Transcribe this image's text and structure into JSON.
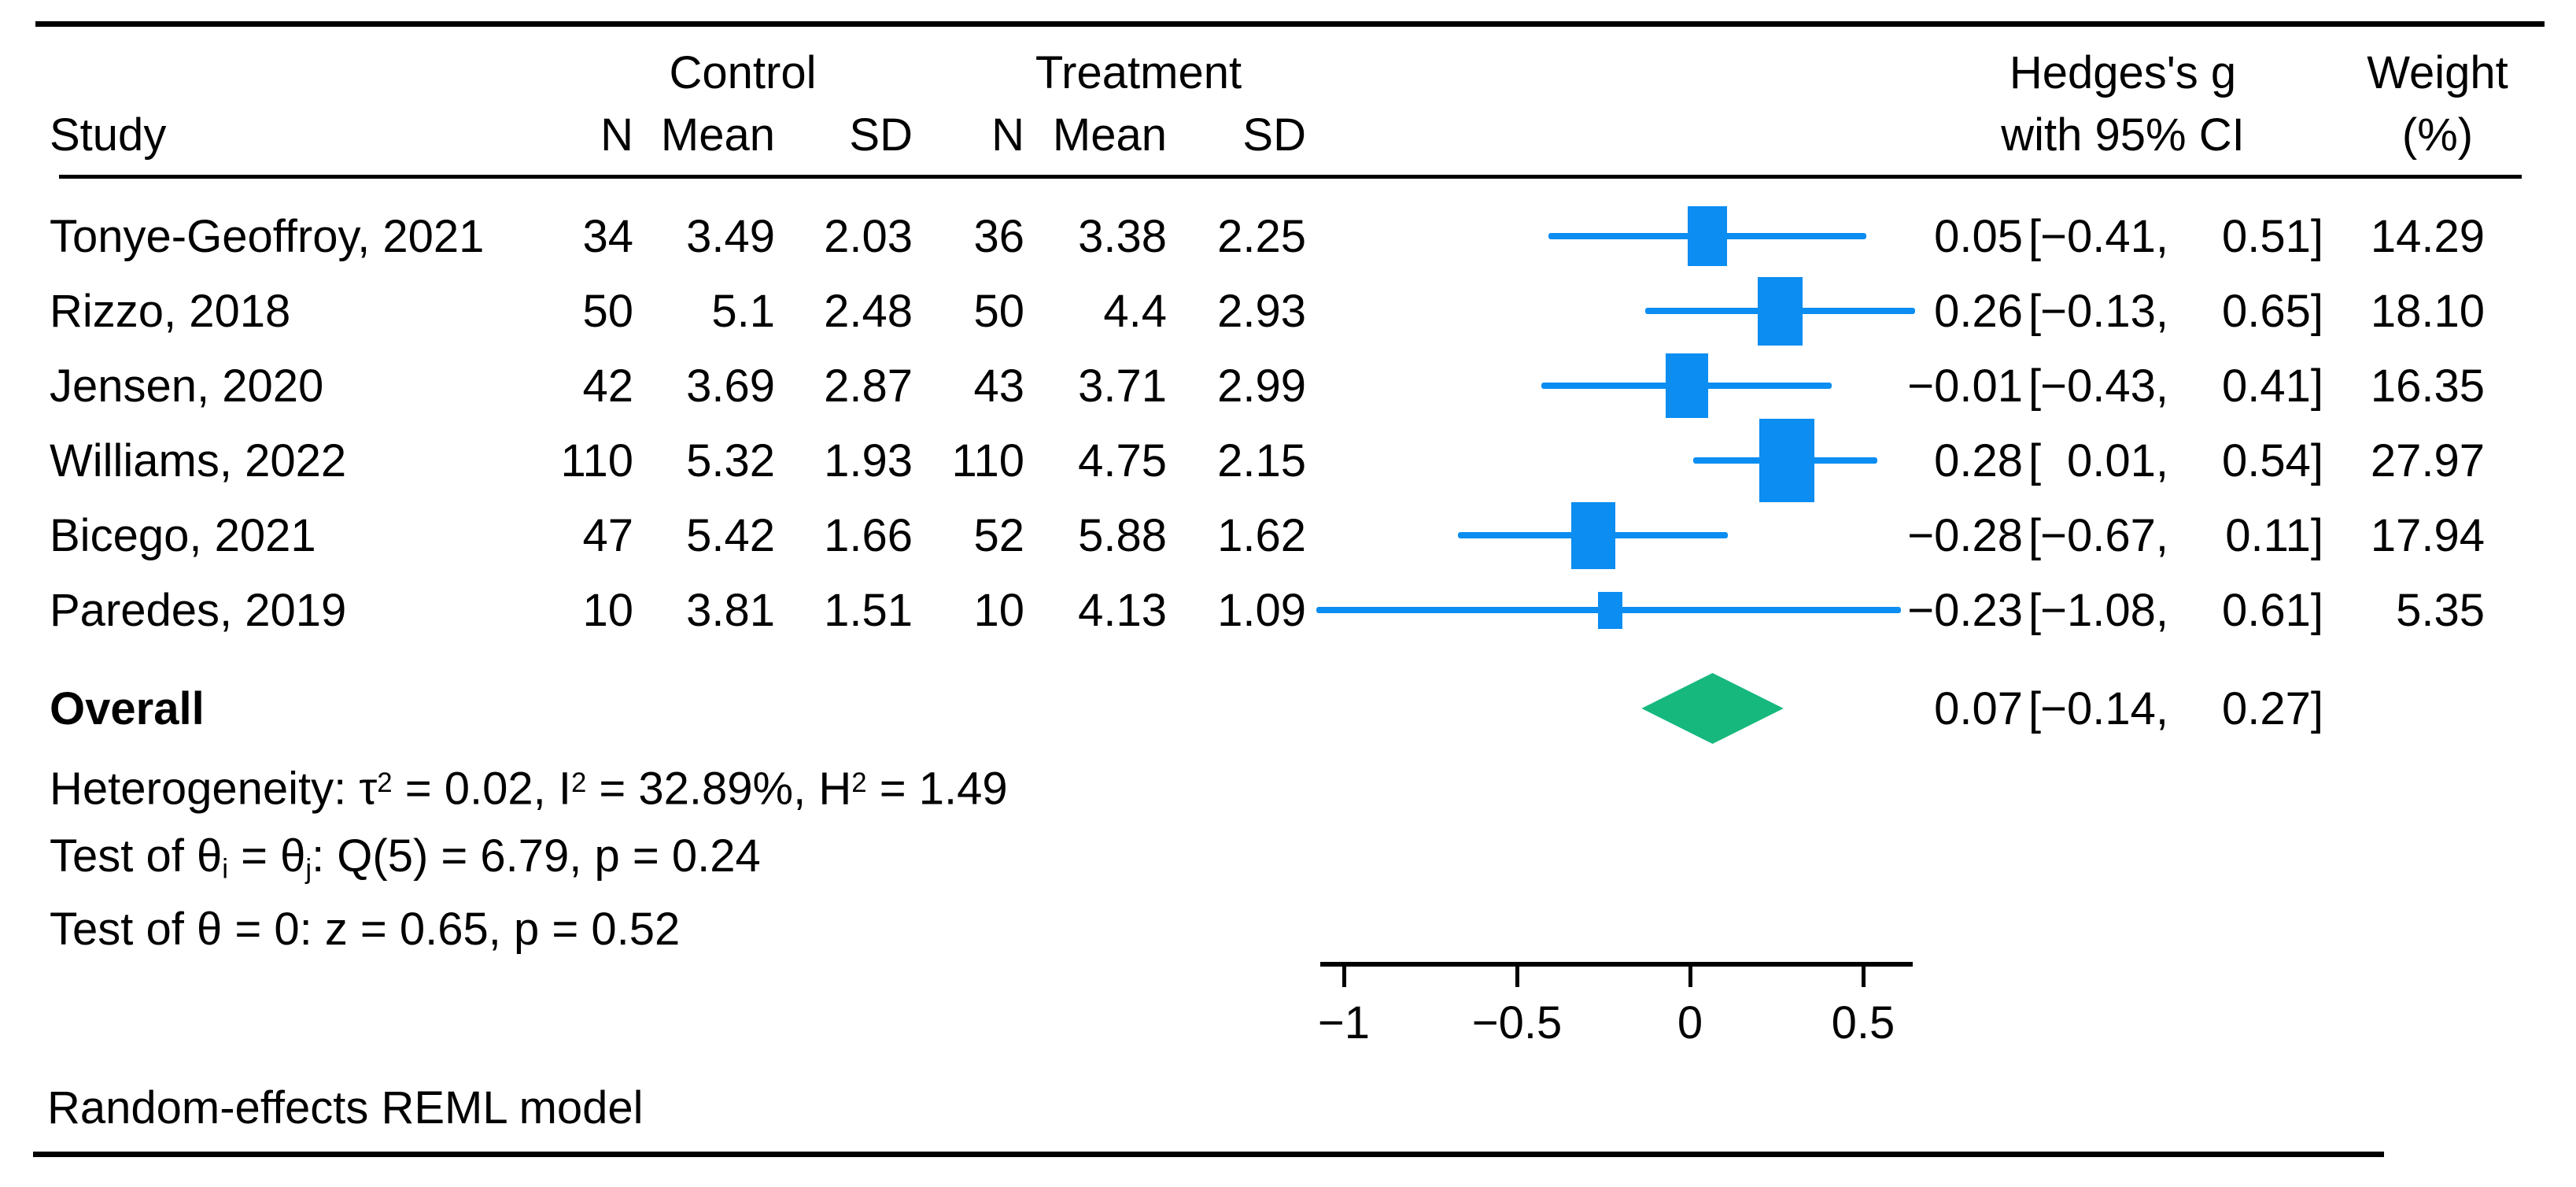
{
  "header": {
    "study": "Study",
    "group_control": "Control",
    "group_treatment": "Treatment",
    "col_n": "N",
    "col_mean": "Mean",
    "col_sd": "SD",
    "effect_title_line1": "Hedges's g",
    "effect_title_line2": "with 95% CI",
    "weight_title_line1": "Weight",
    "weight_title_line2": "(%)"
  },
  "chart_data": {
    "type": "scatter",
    "subtype": "forest-plot",
    "effect_measure": "Hedges's g",
    "legend_position": "none",
    "grid": false,
    "studies": [
      {
        "study": "Tonye-Geoffroy, 2021",
        "control": {
          "n": "34",
          "mean": "3.49",
          "sd": "2.03"
        },
        "treatment": {
          "n": "36",
          "mean": "3.38",
          "sd": "2.25"
        },
        "est": "0.05",
        "ci_low": "−0.41",
        "ci_high": "0.51",
        "weight": "14.29"
      },
      {
        "study": "Rizzo, 2018",
        "control": {
          "n": "50",
          "mean": "5.1",
          "sd": "2.48"
        },
        "treatment": {
          "n": "50",
          "mean": "4.4",
          "sd": "2.93"
        },
        "est": "0.26",
        "ci_low": "−0.13",
        "ci_high": "0.65",
        "weight": "18.10"
      },
      {
        "study": "Jensen, 2020",
        "control": {
          "n": "42",
          "mean": "3.69",
          "sd": "2.87"
        },
        "treatment": {
          "n": "43",
          "mean": "3.71",
          "sd": "2.99"
        },
        "est": "−0.01",
        "ci_low": "−0.43",
        "ci_high": "0.41",
        "weight": "16.35"
      },
      {
        "study": "Williams, 2022",
        "control": {
          "n": "110",
          "mean": "5.32",
          "sd": "1.93"
        },
        "treatment": {
          "n": "110",
          "mean": "4.75",
          "sd": "2.15"
        },
        "est": "0.28",
        "ci_low": "0.01",
        "ci_high": "0.54",
        "weight": "27.97"
      },
      {
        "study": "Bicego, 2021",
        "control": {
          "n": "47",
          "mean": "5.42",
          "sd": "1.66"
        },
        "treatment": {
          "n": "52",
          "mean": "5.88",
          "sd": "1.62"
        },
        "est": "−0.28",
        "ci_low": "−0.67",
        "ci_high": "0.11",
        "weight": "17.94"
      },
      {
        "study": "Paredes, 2019",
        "control": {
          "n": "10",
          "mean": "3.81",
          "sd": "1.51"
        },
        "treatment": {
          "n": "10",
          "mean": "4.13",
          "sd": "1.09"
        },
        "est": "−0.23",
        "ci_low": "−1.08",
        "ci_high": "0.61",
        "weight": "5.35"
      }
    ],
    "overall": {
      "label": "Overall",
      "est": "0.07",
      "ci_low": "−0.14",
      "ci_high": "0.27"
    },
    "axis": {
      "ticks": [
        "−1",
        "−0.5",
        "0",
        "0.5"
      ],
      "xlim": [
        -1.07,
        0.645
      ]
    }
  },
  "stats": {
    "heterogeneity": [
      {
        "t": "Heterogeneity: τ"
      },
      {
        "t": "2",
        "style": "sup"
      },
      {
        "t": " = 0.02, I"
      },
      {
        "t": "2",
        "style": "sup"
      },
      {
        "t": " = 32.89%, H"
      },
      {
        "t": "2",
        "style": "sup"
      },
      {
        "t": " = 1.49"
      }
    ],
    "test_between": [
      {
        "t": "Test of θ"
      },
      {
        "t": "i",
        "style": "sub"
      },
      {
        "t": " = θ"
      },
      {
        "t": "j",
        "style": "sub"
      },
      {
        "t": ": Q(5) = 6.79, p = 0.24"
      }
    ],
    "test_overall": [
      {
        "t": "Test of θ = 0: z = 0.65, p = 0.52"
      }
    ]
  },
  "footer": {
    "note": "Random-effects REML model"
  },
  "colors": {
    "ci_blue": "#0b8df2",
    "diamond_green": "#16b87d"
  }
}
